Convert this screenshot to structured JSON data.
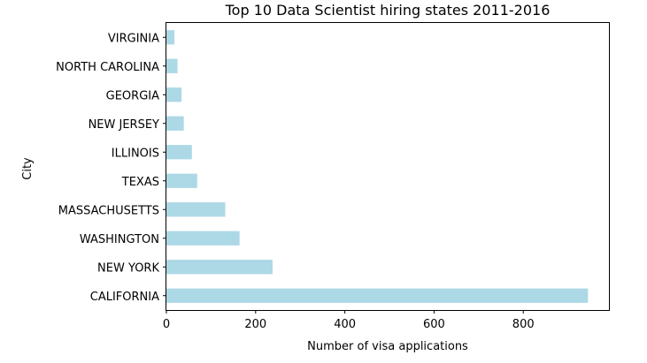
{
  "chart_data": {
    "type": "bar",
    "orientation": "horizontal",
    "title": "Top 10 Data Scientist hiring states 2011-2016",
    "xlabel": "Number of visa applications",
    "ylabel": "City",
    "categories": [
      "CALIFORNIA",
      "NEW YORK",
      "WASHINGTON",
      "MASSACHUSETTS",
      "TEXAS",
      "ILLINOIS",
      "NEW JERSEY",
      "GEORGIA",
      "NORTH CAROLINA",
      "VIRGINIA"
    ],
    "values": [
      945,
      238,
      164,
      132,
      69,
      57,
      39,
      34,
      25,
      18
    ],
    "xlim": [
      0,
      992
    ],
    "xticks": [
      0,
      200,
      400,
      600,
      800
    ],
    "bar_color": "#add8e6",
    "grid": false,
    "legend": "none"
  }
}
